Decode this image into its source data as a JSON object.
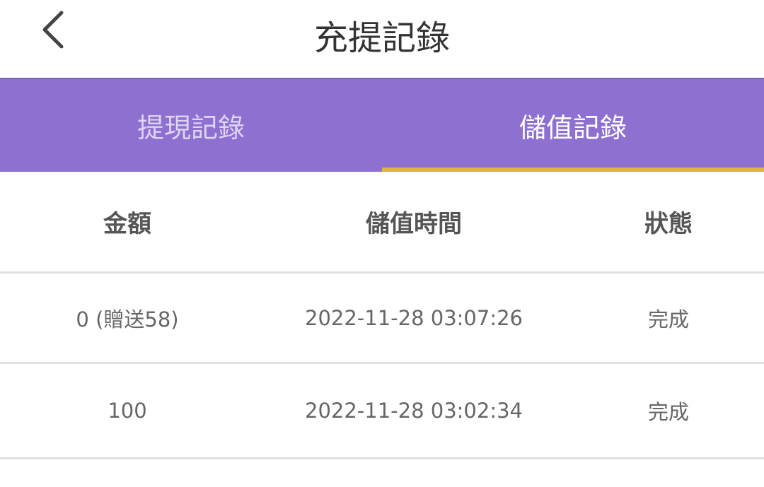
{
  "header": {
    "title": "充提記錄",
    "back_icon": "chevron-left-icon"
  },
  "tabs": [
    {
      "label": "提現記錄",
      "active": false
    },
    {
      "label": "儲值記錄",
      "active": true
    }
  ],
  "colors": {
    "tab_bg": "#8d70cf",
    "tab_indicator": "#e0b43a"
  },
  "table": {
    "columns": [
      "金額",
      "儲值時間",
      "狀態"
    ],
    "rows": [
      [
        "0 (贈送58)",
        "2022-11-28 03:07:26",
        "完成"
      ],
      [
        "100",
        "2022-11-28 03:02:34",
        "完成"
      ]
    ]
  }
}
